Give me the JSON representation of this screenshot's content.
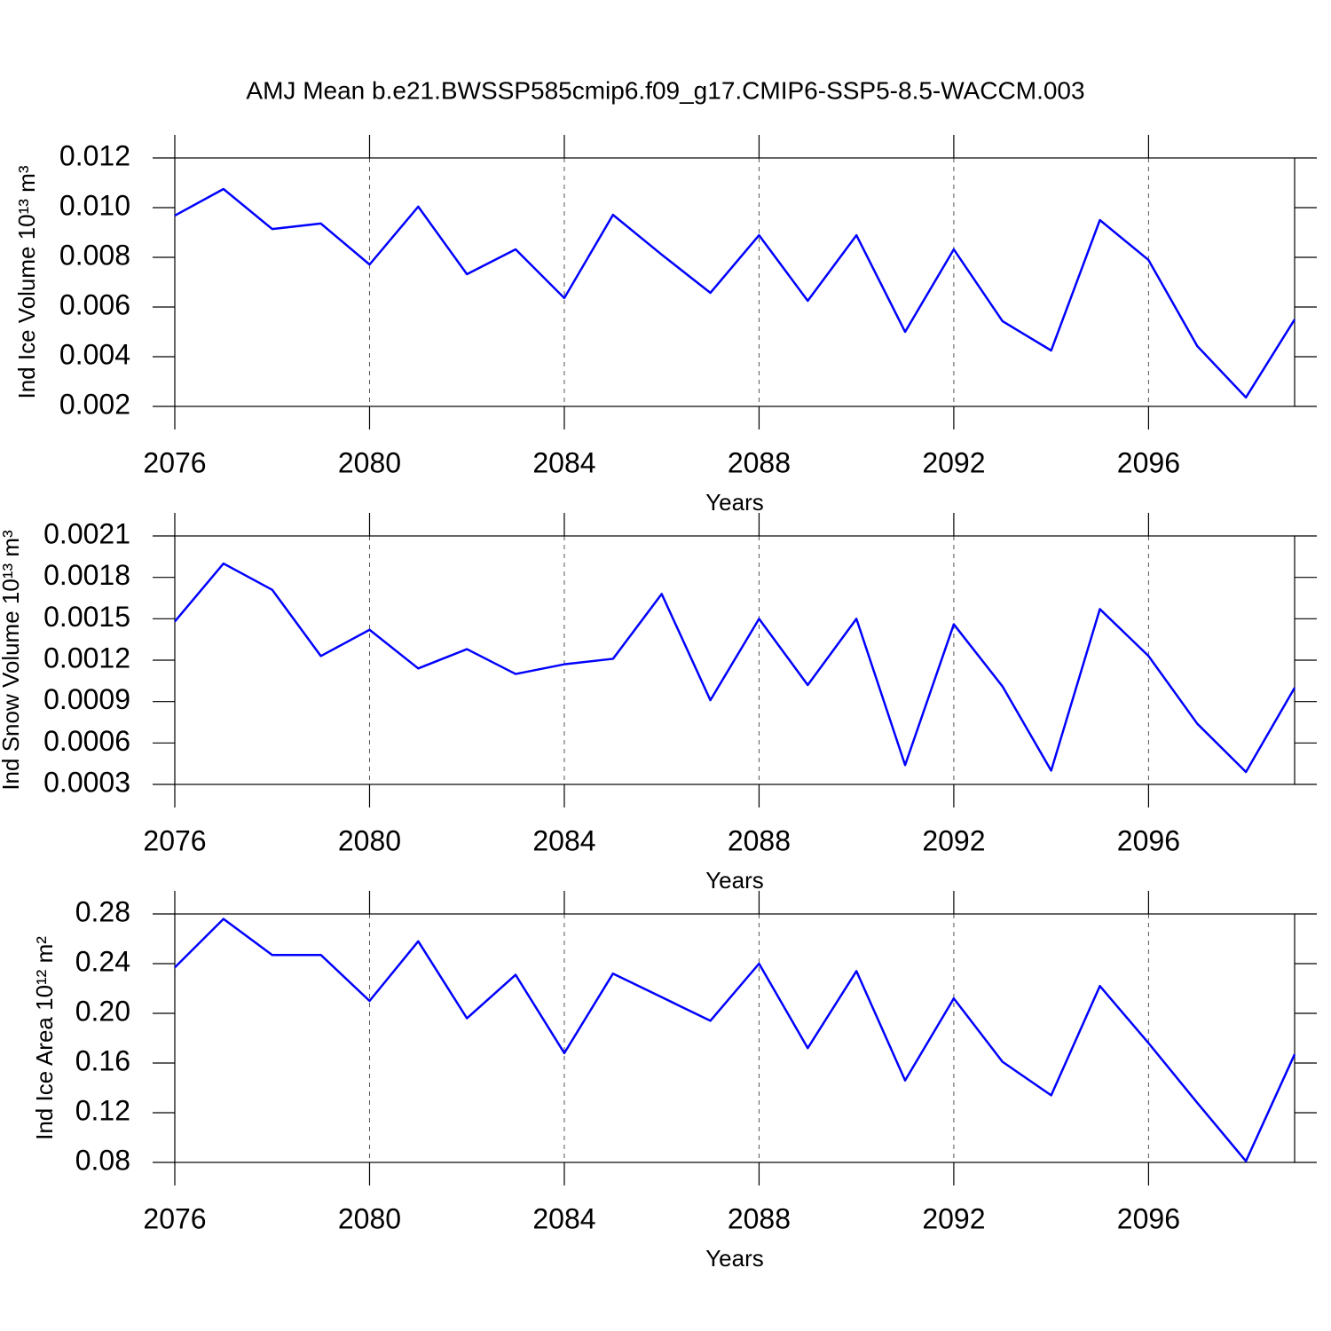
{
  "chart_data": [
    {
      "type": "line",
      "title": "AMJ Mean b.e21.BWSSP585cmip6.f09_g17.CMIP6-SSP5-8.5-WACCM.003",
      "xlabel": "Years",
      "ylabel": "Ind Ice Volume 10¹³ m³",
      "color": "#0000ff",
      "grid": "x",
      "x": [
        2076,
        2077,
        2078,
        2079,
        2080,
        2081,
        2082,
        2083,
        2084,
        2085,
        2086,
        2087,
        2088,
        2089,
        2090,
        2091,
        2092,
        2093,
        2094,
        2095,
        2096,
        2097,
        2098,
        2099
      ],
      "values": [
        0.00968,
        0.01075,
        0.00914,
        0.00936,
        0.00771,
        0.01004,
        0.00732,
        0.00832,
        0.00636,
        0.00971,
        0.00811,
        0.00657,
        0.00889,
        0.00625,
        0.00889,
        0.005,
        0.00832,
        0.00543,
        0.00425,
        0.0095,
        0.00789,
        0.00443,
        0.00236,
        0.0055
      ],
      "xlim": [
        2076,
        2099
      ],
      "xticks": [
        2076,
        2080,
        2084,
        2088,
        2092,
        2096
      ],
      "ylim": [
        0.002,
        0.012
      ],
      "yticks": [
        {
          "value": 0.002,
          "label": "0.002"
        },
        {
          "value": 0.004,
          "label": "0.004"
        },
        {
          "value": 0.006,
          "label": "0.006"
        },
        {
          "value": 0.008,
          "label": "0.008"
        },
        {
          "value": 0.01,
          "label": "0.010"
        },
        {
          "value": 0.012,
          "label": "0.012"
        }
      ]
    },
    {
      "type": "line",
      "xlabel": "Years",
      "ylabel": "Ind Snow Volume 10¹³ m³",
      "color": "#0000ff",
      "grid": "x",
      "x": [
        2076,
        2077,
        2078,
        2079,
        2080,
        2081,
        2082,
        2083,
        2084,
        2085,
        2086,
        2087,
        2088,
        2089,
        2090,
        2091,
        2092,
        2093,
        2094,
        2095,
        2096,
        2097,
        2098,
        2099
      ],
      "values": [
        0.00148,
        0.0019,
        0.00171,
        0.00123,
        0.00142,
        0.00114,
        0.00128,
        0.0011,
        0.00117,
        0.00121,
        0.00168,
        0.00091,
        0.0015,
        0.00102,
        0.0015,
        0.00044,
        0.00146,
        0.00101,
        0.0004,
        0.00157,
        0.00123,
        0.00074,
        0.00039,
        0.001
      ],
      "xlim": [
        2076,
        2099
      ],
      "xticks": [
        2076,
        2080,
        2084,
        2088,
        2092,
        2096
      ],
      "ylim": [
        0.0003,
        0.0021
      ],
      "yticks": [
        0.0003,
        0.0006,
        0.0009,
        0.0012,
        0.0015,
        0.0018,
        0.0021
      ]
    },
    {
      "type": "line",
      "xlabel": "Years",
      "ylabel": "Ind Ice Area 10¹² m²",
      "color": "#0000ff",
      "grid": "x",
      "x": [
        2076,
        2077,
        2078,
        2079,
        2080,
        2081,
        2082,
        2083,
        2084,
        2085,
        2086,
        2087,
        2088,
        2089,
        2090,
        2091,
        2092,
        2093,
        2094,
        2095,
        2096,
        2097,
        2098,
        2099
      ],
      "values": [
        0.237,
        0.276,
        0.247,
        0.247,
        0.21,
        0.258,
        0.196,
        0.231,
        0.168,
        0.232,
        0.213,
        0.194,
        0.24,
        0.172,
        0.234,
        0.146,
        0.212,
        0.161,
        0.134,
        0.222,
        0.176,
        0.128,
        0.081,
        0.167
      ],
      "xlim": [
        2076,
        2099
      ],
      "xticks": [
        2076,
        2080,
        2084,
        2088,
        2092,
        2096
      ],
      "ylim": [
        0.08,
        0.28
      ],
      "yticks": [
        0.08,
        0.12,
        0.16,
        {
          "value": 0.2,
          "label": "0.20"
        },
        0.24,
        0.28
      ]
    }
  ]
}
